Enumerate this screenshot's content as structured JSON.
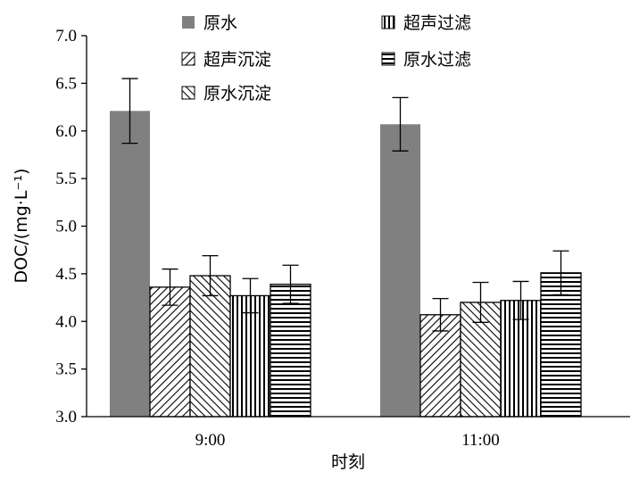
{
  "chart_data": {
    "type": "bar",
    "categories": [
      "9:00",
      "11:00"
    ],
    "series": [
      {
        "name": "原水",
        "values": [
          6.21,
          6.07
        ],
        "errors": [
          0.34,
          0.28
        ],
        "color": "#808080",
        "pattern": "solid"
      },
      {
        "name": "超声沉淀",
        "values": [
          4.36,
          4.07
        ],
        "errors": [
          0.19,
          0.17
        ],
        "pattern": "diag-right"
      },
      {
        "name": "原水沉淀",
        "values": [
          4.48,
          4.2
        ],
        "errors": [
          0.21,
          0.21
        ],
        "pattern": "diag-left"
      },
      {
        "name": "超声过滤",
        "values": [
          4.27,
          4.22
        ],
        "errors": [
          0.18,
          0.2
        ],
        "pattern": "vertical"
      },
      {
        "name": "原水过滤",
        "values": [
          4.39,
          4.51
        ],
        "errors": [
          0.2,
          0.23
        ],
        "pattern": "horizontal"
      }
    ],
    "xlabel": "时刻",
    "ylabel": "DOC/(mg·L⁻¹)",
    "ylim": [
      3.0,
      7.0
    ],
    "yticks": [
      "3.0",
      "3.5",
      "4.0",
      "4.5",
      "5.0",
      "5.5",
      "6.0",
      "6.5",
      "7.0"
    ],
    "legend_position": "top",
    "grid": false
  }
}
